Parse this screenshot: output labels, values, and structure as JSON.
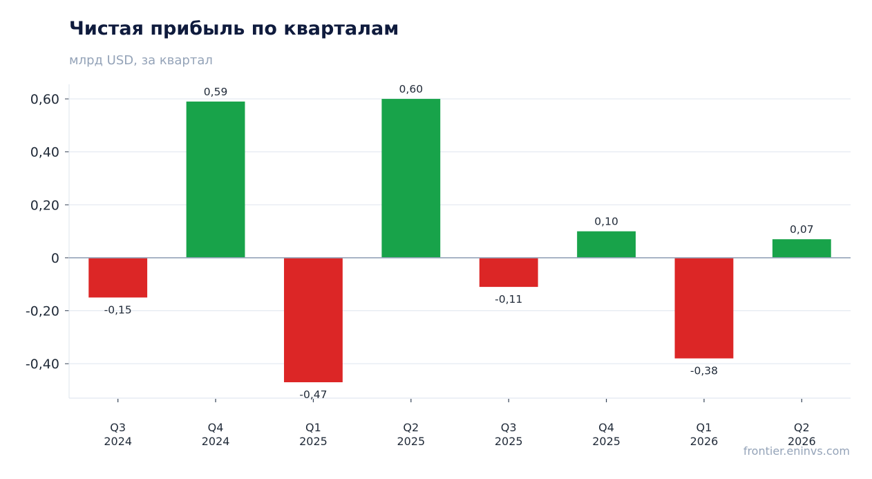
{
  "header": {
    "title": "Чистая прибыль по кварталам",
    "subtitle": "млрд USD, за квартал"
  },
  "footer": {
    "source": "frontier.eninvs.com"
  },
  "colors": {
    "positive": "#18a34a",
    "negative": "#dc2626",
    "zero_line": "#94a3b8",
    "grid": "#e2e8f0"
  },
  "chart_data": {
    "type": "bar",
    "title": "Чистая прибыль по кварталам",
    "subtitle": "млрд USD, за квартал",
    "categories": [
      [
        "Q3",
        "2024"
      ],
      [
        "Q4",
        "2024"
      ],
      [
        "Q1",
        "2025"
      ],
      [
        "Q2",
        "2025"
      ],
      [
        "Q3",
        "2025"
      ],
      [
        "Q4",
        "2025"
      ],
      [
        "Q1",
        "2026"
      ],
      [
        "Q2",
        "2026"
      ]
    ],
    "values": [
      -0.15,
      0.59,
      -0.47,
      0.6,
      -0.11,
      0.1,
      -0.38,
      0.07
    ],
    "value_labels": [
      "-0,15",
      "0,59",
      "-0,47",
      "0,60",
      "-0,11",
      "0,10",
      "-0,38",
      "0,07"
    ],
    "yticks": [
      0.6,
      0.4,
      0.2,
      0,
      -0.2,
      -0.4
    ],
    "ytick_labels": [
      "0,60",
      "0,40",
      "0,20",
      "0",
      "-0,20",
      "-0,40"
    ],
    "ylim": [
      -0.53,
      0.655
    ],
    "grid": true,
    "legend": "none"
  }
}
